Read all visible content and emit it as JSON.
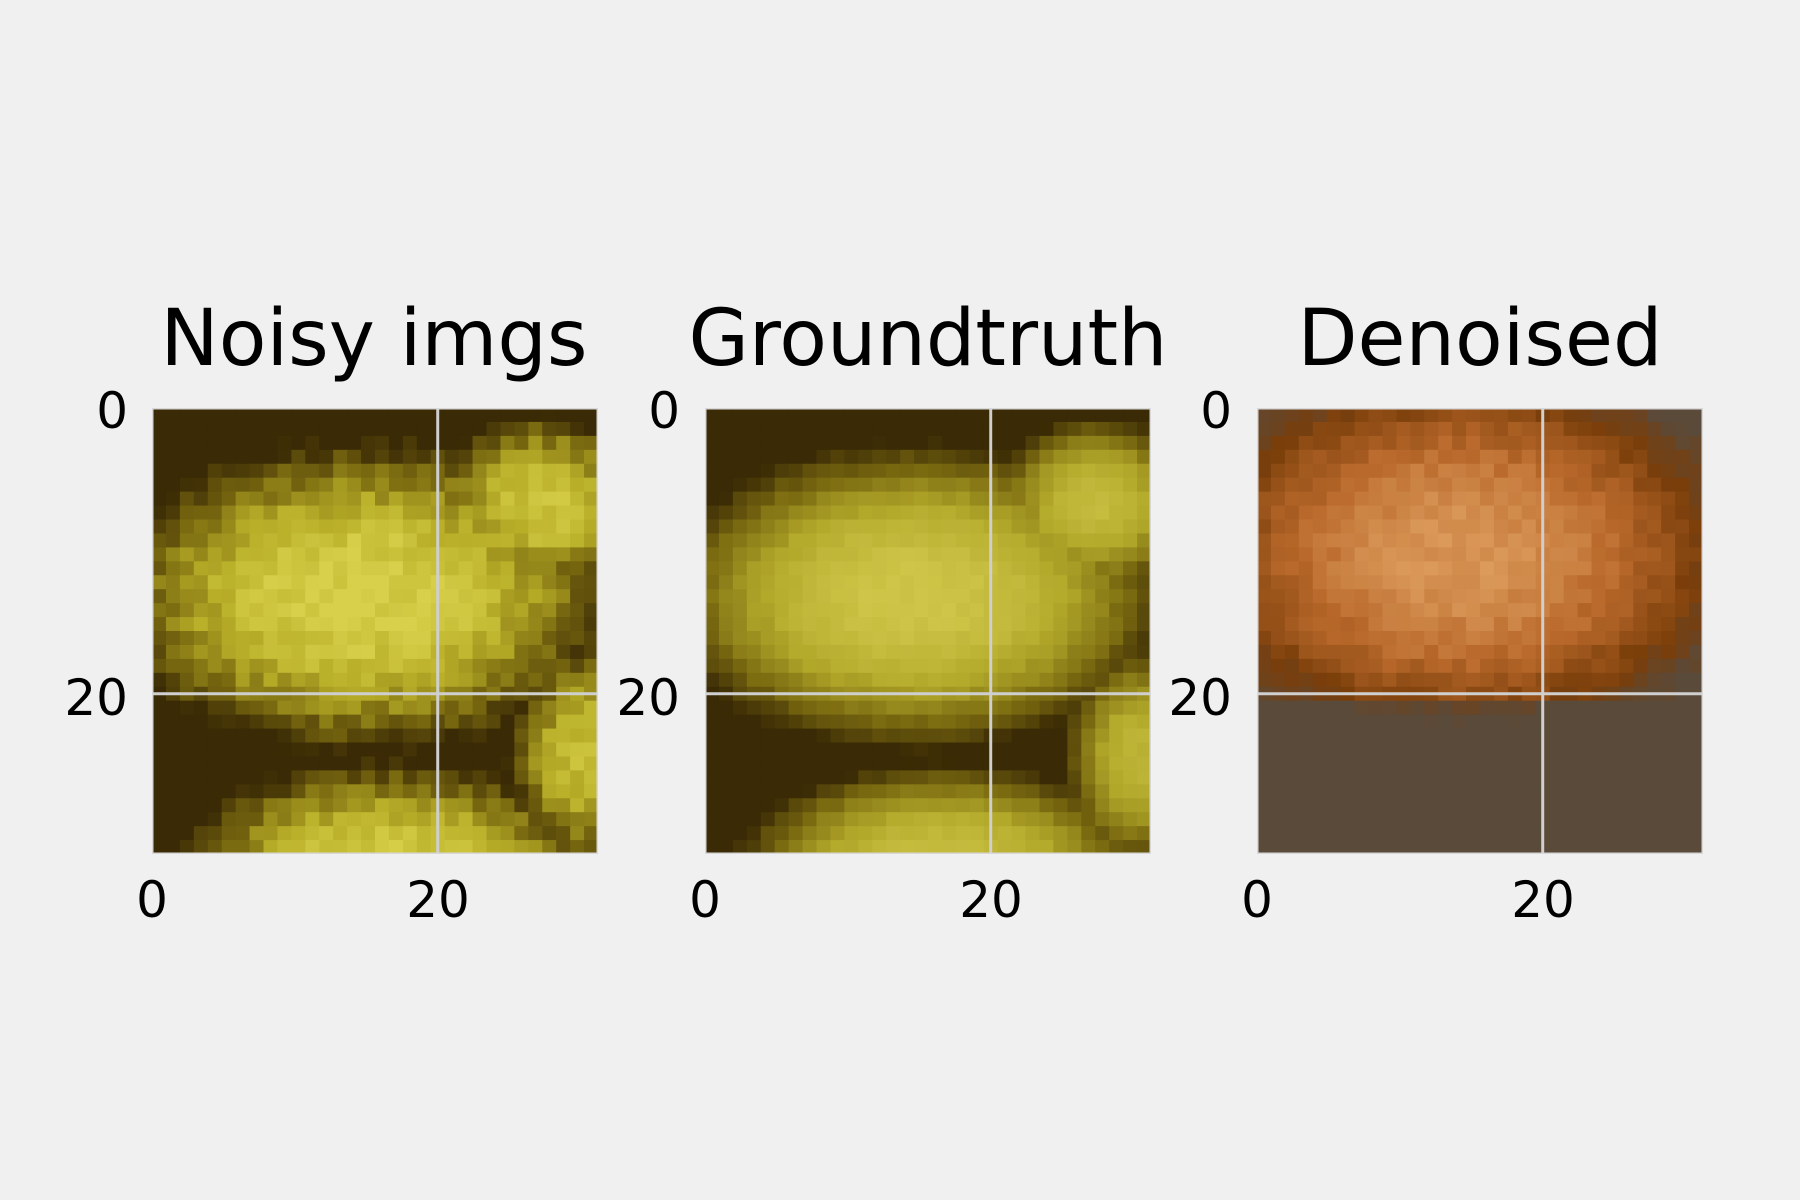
{
  "chart_data": [
    {
      "type": "heatmap",
      "title": "Noisy imgs",
      "image_size": [
        32,
        32
      ],
      "xticks": [
        "0",
        "20"
      ],
      "yticks": [
        "0",
        "20"
      ],
      "grid": true,
      "palette": {
        "light": "#d8d04a",
        "mid": "#b8ae28",
        "dark": "#7a6a10",
        "shadow": "#3a2a05"
      }
    },
    {
      "type": "heatmap",
      "title": "Groundtruth",
      "image_size": [
        32,
        32
      ],
      "xticks": [
        "0",
        "20"
      ],
      "yticks": [
        "0",
        "20"
      ],
      "grid": true,
      "palette": {
        "light": "#cfc548",
        "mid": "#b2a82a",
        "dark": "#7a6a10",
        "shadow": "#3a2a05"
      }
    },
    {
      "type": "heatmap",
      "title": "Denoised",
      "image_size": [
        32,
        32
      ],
      "xticks": [
        "0",
        "20"
      ],
      "yticks": [
        "0",
        "20"
      ],
      "grid": true,
      "palette": {
        "light": "#e0a060",
        "mid": "#b8682a",
        "dark": "#7a3e0a",
        "shadow": "#5a4a3a"
      }
    }
  ]
}
